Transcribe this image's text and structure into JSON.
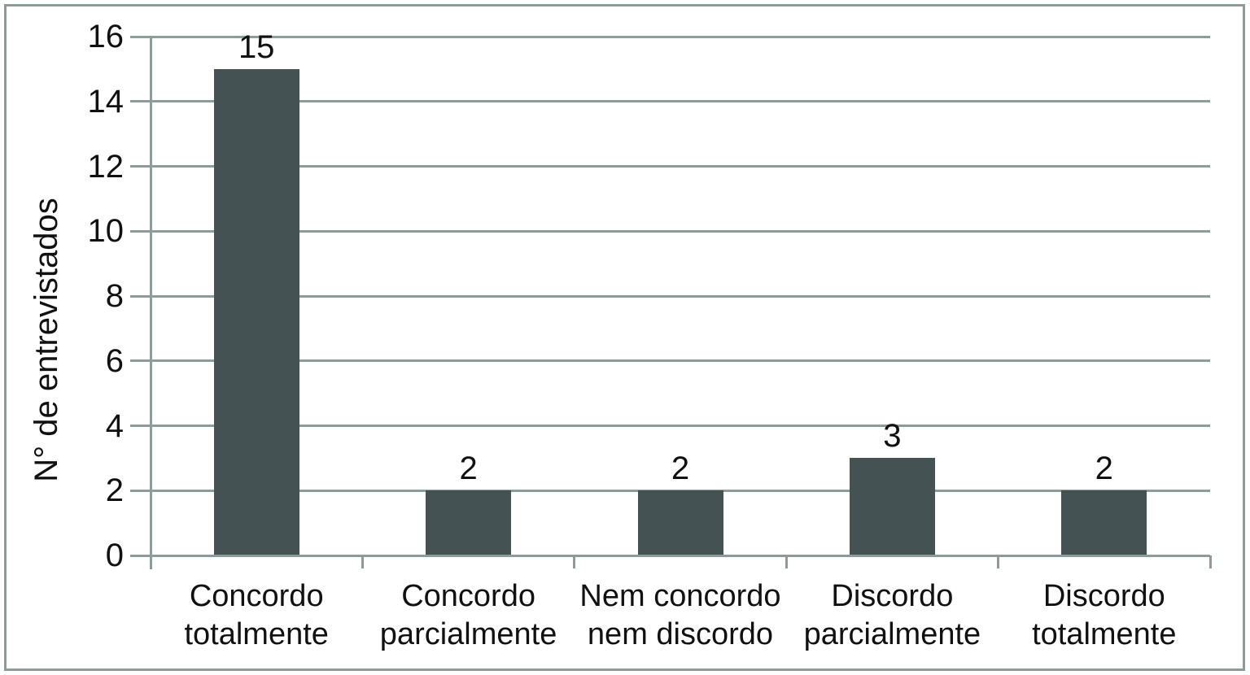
{
  "chart_data": {
    "type": "bar",
    "title": "",
    "categories": [
      "Concordo\ntotalmente",
      "Concordo\nparcialmente",
      "Nem concordo\nnem discordo",
      "Discordo\nparcialmente",
      "Discordo\ntotalmente"
    ],
    "values": [
      15,
      2,
      2,
      3,
      2
    ],
    "value_labels": [
      "15",
      "2",
      "2",
      "3",
      "2"
    ],
    "xlabel": "",
    "ylabel": "N° de entrevistados",
    "ylim": [
      0,
      16
    ],
    "ytick_step": 2,
    "ytick_labels": [
      "0",
      "2",
      "4",
      "6",
      "8",
      "10",
      "12",
      "14",
      "16"
    ],
    "grid": "horizontal-only",
    "legend": "none",
    "bar_color": "#455253",
    "grid_color": "#8C9C99",
    "text_color": "#111111",
    "background": "#FFFFFF"
  }
}
